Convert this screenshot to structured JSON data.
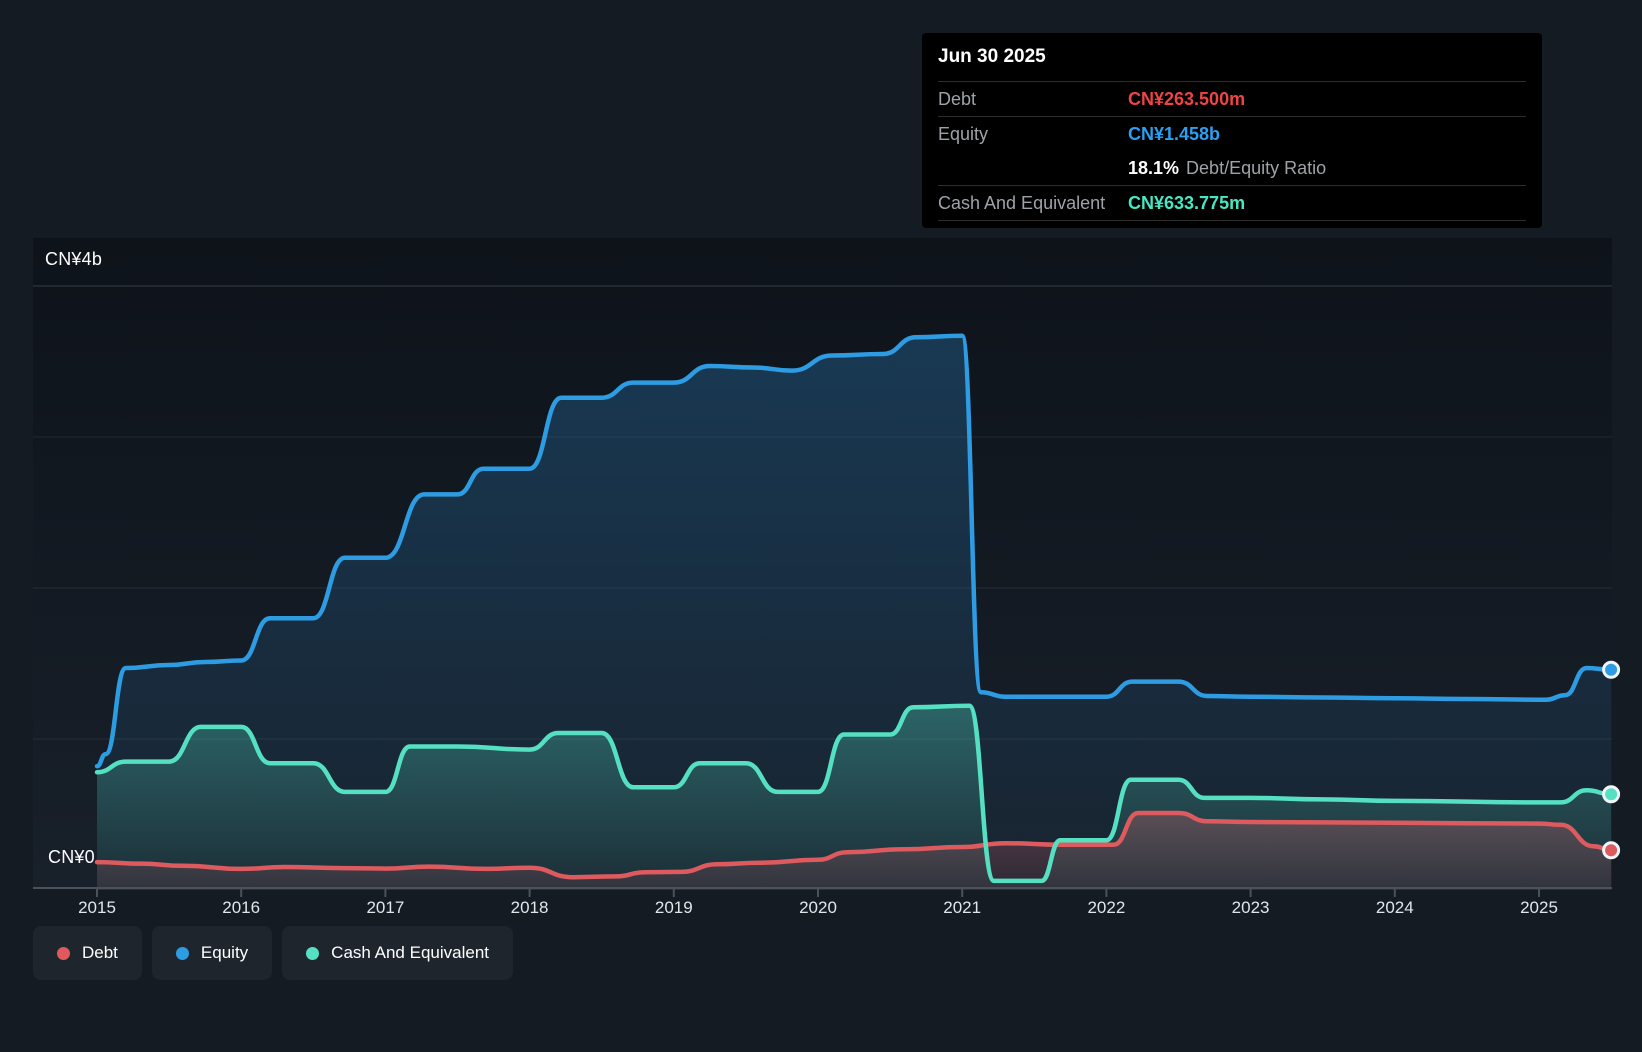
{
  "colors": {
    "background": "#151b23",
    "debt": "#dd5a5e",
    "equity": "#2e9ce2",
    "cash": "#55e0c2",
    "debt_text": "#ef4444",
    "equity_text": "#2b9ff0",
    "cash_text": "#47e7c3",
    "axis": "#49525b"
  },
  "tooltip": {
    "title": "Jun 30 2025",
    "debt_label": "Debt",
    "debt_value": "CN¥263.500m",
    "equity_label": "Equity",
    "equity_value": "CN¥1.458b",
    "ratio_value": "18.1%",
    "ratio_label": "Debt/Equity Ratio",
    "cash_label": "Cash And Equivalent",
    "cash_value": "CN¥633.775m"
  },
  "legend": {
    "items": [
      {
        "id": "debt",
        "label": "Debt"
      },
      {
        "id": "equity",
        "label": "Equity"
      },
      {
        "id": "cash",
        "label": "Cash And Equivalent"
      }
    ]
  },
  "chart_data": {
    "type": "area",
    "x_axis": {
      "years": [
        2015,
        2016,
        2017,
        2018,
        2019,
        2020,
        2021,
        2022,
        2023,
        2024,
        2025
      ],
      "data_end": 2025.5
    },
    "y_axis": {
      "min": 0,
      "max": 4,
      "unit": "CN¥ billions",
      "label_top": "CN¥4b",
      "label_zero": "CN¥0",
      "gridlines": [
        1,
        2,
        3,
        4
      ]
    },
    "series": [
      {
        "id": "equity",
        "name": "Equity",
        "color": "#2e9ce2",
        "fill_top": "rgba(46,140,210,0.30)",
        "fill_bottom": "rgba(46,140,210,0.03)",
        "points": [
          [
            2015.0,
            0.82
          ],
          [
            2015.06,
            0.9
          ],
          [
            2015.2,
            1.47
          ],
          [
            2015.5,
            1.49
          ],
          [
            2015.75,
            1.51
          ],
          [
            2016.0,
            1.52
          ],
          [
            2016.2,
            1.8
          ],
          [
            2016.5,
            1.8
          ],
          [
            2016.72,
            2.2
          ],
          [
            2017.0,
            2.2
          ],
          [
            2017.27,
            2.62
          ],
          [
            2017.5,
            2.62
          ],
          [
            2017.68,
            2.79
          ],
          [
            2018.0,
            2.79
          ],
          [
            2018.22,
            3.26
          ],
          [
            2018.5,
            3.26
          ],
          [
            2018.72,
            3.36
          ],
          [
            2019.0,
            3.36
          ],
          [
            2019.25,
            3.47
          ],
          [
            2019.55,
            3.46
          ],
          [
            2019.82,
            3.44
          ],
          [
            2020.1,
            3.54
          ],
          [
            2020.45,
            3.55
          ],
          [
            2020.68,
            3.66
          ],
          [
            2021.0,
            3.67
          ],
          [
            2021.13,
            1.31
          ],
          [
            2021.3,
            1.28
          ],
          [
            2022.0,
            1.28
          ],
          [
            2022.18,
            1.38
          ],
          [
            2022.5,
            1.38
          ],
          [
            2022.7,
            1.285
          ],
          [
            2023.0,
            1.28
          ],
          [
            2023.5,
            1.275
          ],
          [
            2024.0,
            1.27
          ],
          [
            2024.5,
            1.265
          ],
          [
            2025.05,
            1.26
          ],
          [
            2025.18,
            1.29
          ],
          [
            2025.33,
            1.47
          ],
          [
            2025.5,
            1.458
          ]
        ]
      },
      {
        "id": "cash",
        "name": "Cash And Equivalent",
        "color": "#55e0c2",
        "fill_top": "rgba(85,224,194,0.32)",
        "fill_bottom": "rgba(85,224,194,0.05)",
        "points": [
          [
            2015.0,
            0.78
          ],
          [
            2015.2,
            0.85
          ],
          [
            2015.5,
            0.85
          ],
          [
            2015.72,
            1.08
          ],
          [
            2016.0,
            1.08
          ],
          [
            2016.2,
            0.84
          ],
          [
            2016.5,
            0.84
          ],
          [
            2016.72,
            0.65
          ],
          [
            2017.0,
            0.65
          ],
          [
            2017.17,
            0.95
          ],
          [
            2017.5,
            0.95
          ],
          [
            2018.0,
            0.93
          ],
          [
            2018.2,
            1.04
          ],
          [
            2018.5,
            1.04
          ],
          [
            2018.72,
            0.68
          ],
          [
            2019.0,
            0.68
          ],
          [
            2019.18,
            0.84
          ],
          [
            2019.5,
            0.84
          ],
          [
            2019.72,
            0.65
          ],
          [
            2020.0,
            0.65
          ],
          [
            2020.18,
            1.03
          ],
          [
            2020.5,
            1.03
          ],
          [
            2020.66,
            1.21
          ],
          [
            2021.05,
            1.22
          ],
          [
            2021.22,
            0.06
          ],
          [
            2021.55,
            0.06
          ],
          [
            2021.68,
            0.33
          ],
          [
            2022.0,
            0.33
          ],
          [
            2022.17,
            0.73
          ],
          [
            2022.5,
            0.73
          ],
          [
            2022.68,
            0.61
          ],
          [
            2023.0,
            0.61
          ],
          [
            2023.5,
            0.6
          ],
          [
            2024.0,
            0.59
          ],
          [
            2025.0,
            0.58
          ],
          [
            2025.15,
            0.58
          ],
          [
            2025.33,
            0.66
          ],
          [
            2025.5,
            0.634
          ]
        ]
      },
      {
        "id": "debt",
        "name": "Debt",
        "color": "#dd5a5e",
        "fill_top": "rgba(221,100,110,0.30)",
        "fill_bottom": "rgba(221,100,110,0.10)",
        "points": [
          [
            2015.0,
            0.185
          ],
          [
            2015.3,
            0.175
          ],
          [
            2015.6,
            0.16
          ],
          [
            2016.0,
            0.14
          ],
          [
            2016.3,
            0.152
          ],
          [
            2016.7,
            0.145
          ],
          [
            2017.0,
            0.142
          ],
          [
            2017.3,
            0.155
          ],
          [
            2017.7,
            0.14
          ],
          [
            2018.0,
            0.148
          ],
          [
            2018.3,
            0.085
          ],
          [
            2018.6,
            0.09
          ],
          [
            2018.8,
            0.118
          ],
          [
            2019.05,
            0.12
          ],
          [
            2019.3,
            0.17
          ],
          [
            2019.6,
            0.18
          ],
          [
            2020.0,
            0.2
          ],
          [
            2020.2,
            0.25
          ],
          [
            2020.6,
            0.27
          ],
          [
            2021.0,
            0.285
          ],
          [
            2021.3,
            0.31
          ],
          [
            2021.7,
            0.3
          ],
          [
            2022.05,
            0.3
          ],
          [
            2022.22,
            0.51
          ],
          [
            2022.5,
            0.51
          ],
          [
            2022.7,
            0.455
          ],
          [
            2023.0,
            0.45
          ],
          [
            2024.0,
            0.445
          ],
          [
            2025.0,
            0.44
          ],
          [
            2025.15,
            0.432
          ],
          [
            2025.38,
            0.29
          ],
          [
            2025.5,
            0.2635
          ]
        ]
      }
    ]
  }
}
